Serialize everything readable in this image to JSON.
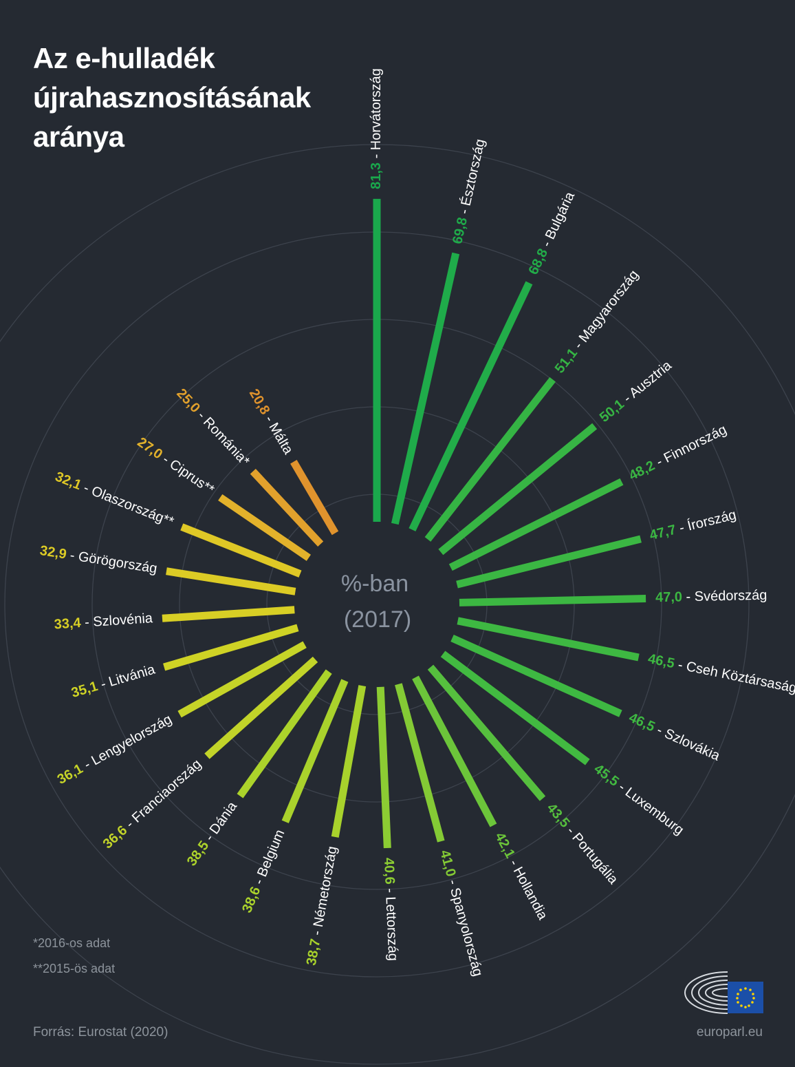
{
  "title": [
    "Az e-hulladék",
    "újrahasznosításának",
    "aránya"
  ],
  "center_label": {
    "line1": "%-ban",
    "line2": "(2017)"
  },
  "notes": [
    "*2016-os adat",
    "**2015-ös adat"
  ],
  "source": "Forrás: Eurostat (2020)",
  "site": "europarl.eu",
  "chart_data": {
    "type": "radial-bar",
    "unit": "%",
    "year": "2017",
    "order": "descending, clockwise from top",
    "categories": [
      "Horvátország",
      "Észtország",
      "Bulgária",
      "Magyarország",
      "Ausztria",
      "Finnország",
      "Írország",
      "Svédország",
      "Cseh Köztársaság",
      "Szlovákia",
      "Luxemburg",
      "Portugália",
      "Hollandia",
      "Spanyolország",
      "Lettország",
      "Németország",
      "Belgium",
      "Dánia",
      "Franciaország",
      "Lengyelország",
      "Litvánia",
      "Szlovénia",
      "Görögország",
      "Olaszország**",
      "Ciprus**",
      "Románia*",
      "Málta"
    ],
    "values": [
      81.3,
      69.8,
      68.8,
      51.1,
      50.1,
      48.2,
      47.7,
      47.0,
      46.5,
      46.5,
      45.5,
      43.5,
      42.1,
      41.0,
      40.6,
      38.7,
      38.6,
      38.5,
      36.6,
      36.1,
      35.1,
      33.4,
      32.9,
      32.1,
      27.0,
      25.0,
      20.8
    ],
    "value_labels": [
      "81,3",
      "69,8",
      "68,8",
      "51,1",
      "50,1",
      "48,2",
      "47,7",
      "47,0",
      "46,5",
      "46,5",
      "45,5",
      "43,5",
      "42,1",
      "41,0",
      "40,6",
      "38,7",
      "38,6",
      "38,5",
      "36,6",
      "36,1",
      "35,1",
      "33,4",
      "32,9",
      "32,1",
      "27,0",
      "25,0",
      "20,8"
    ],
    "colors": [
      "#1aa84c",
      "#1fab4a",
      "#22ad49",
      "#35b444",
      "#37b544",
      "#3ab643",
      "#3bb743",
      "#3cb742",
      "#3eb842",
      "#3eb842",
      "#42ba41",
      "#56bf3e",
      "#6cc53a",
      "#84ca35",
      "#8ccc33",
      "#a8d22c",
      "#aad22c",
      "#acd32b",
      "#c2d429",
      "#c6d428",
      "#cfd325",
      "#d8cf25",
      "#dccb25",
      "#dfc826",
      "#e3b22b",
      "#e2a12c",
      "#e0932d"
    ],
    "grid_rings": 5
  }
}
